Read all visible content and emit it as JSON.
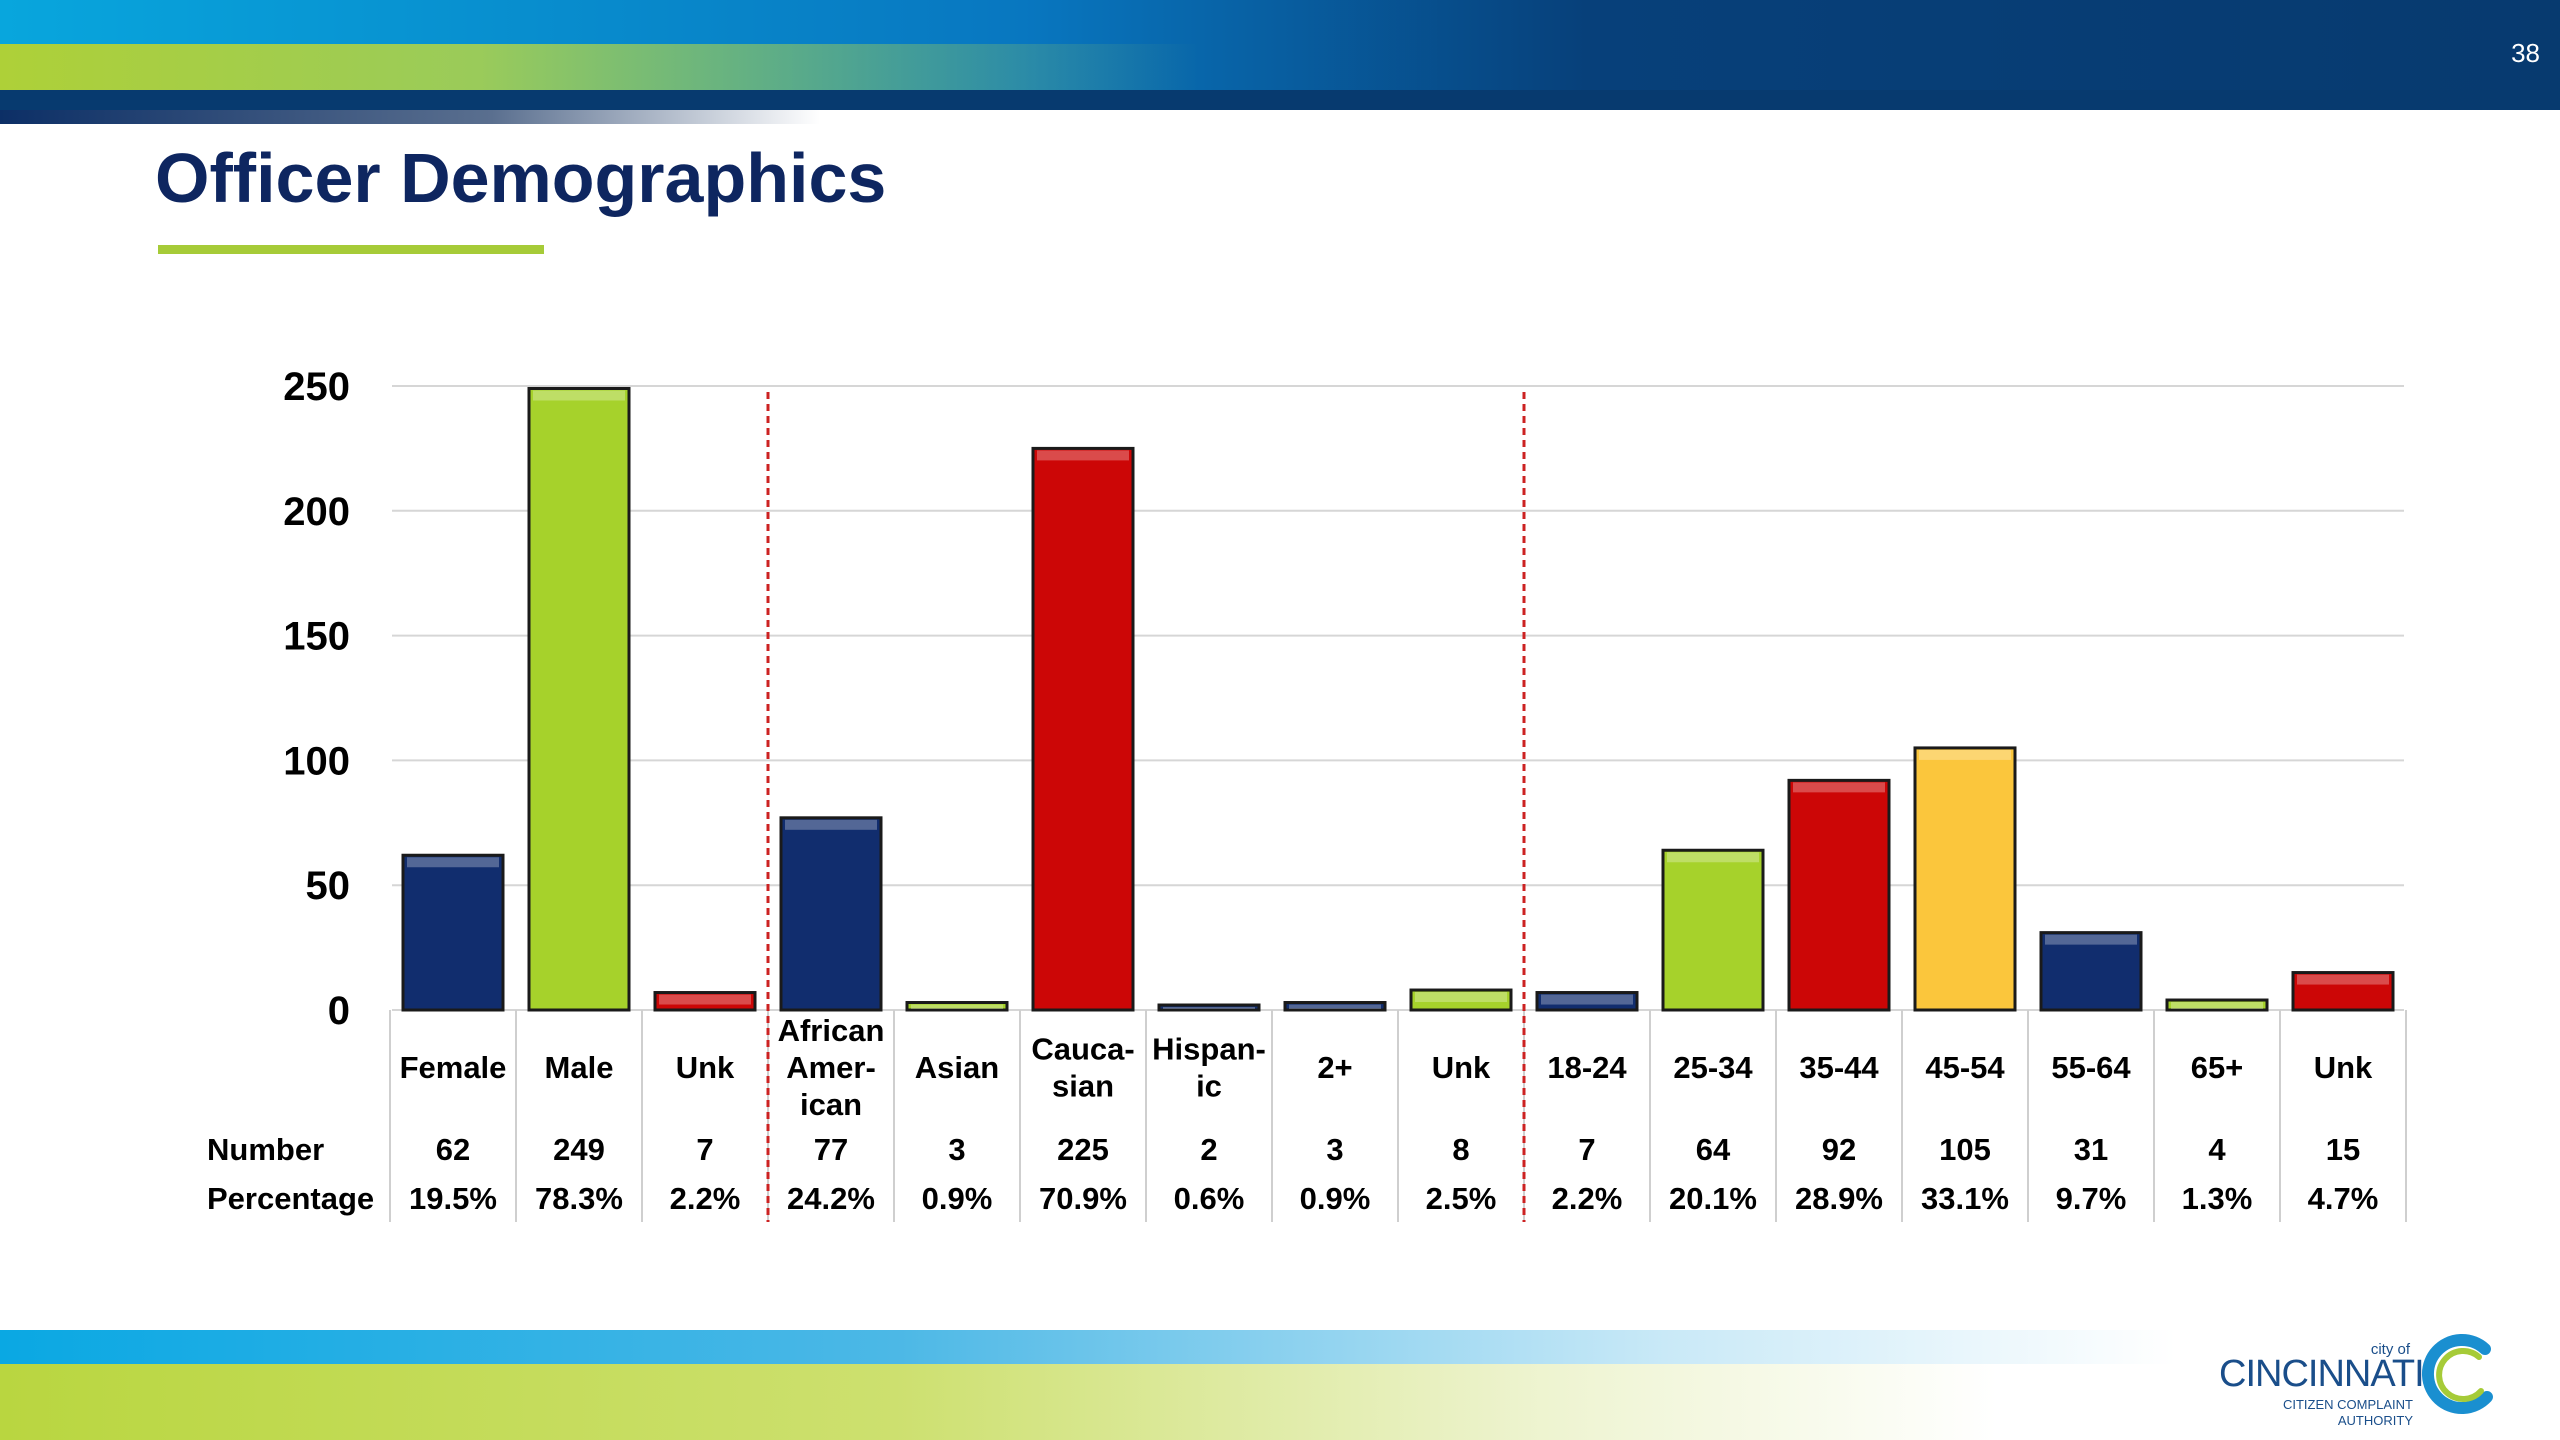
{
  "slide": {
    "page_number": "38",
    "title": "Officer Demographics"
  },
  "logo": {
    "city_of": "city of",
    "name": "CINCINNATI",
    "sub_line1": "CITIZEN COMPLAINT",
    "sub_line2": "AUTHORITY"
  },
  "colors": {
    "navy": "#112d6e",
    "green": "#a6d22b",
    "red": "#cc0606",
    "yellow": "#fbc63c",
    "divider": "#cc2222"
  },
  "chart_data": {
    "type": "bar",
    "title": "",
    "ylim": [
      0,
      250
    ],
    "yticks": [
      0,
      50,
      100,
      150,
      200,
      250
    ],
    "grid": true,
    "row_labels": {
      "number": "Number",
      "percentage": "Percentage"
    },
    "categories": [
      {
        "label": [
          "Female"
        ],
        "value": 62,
        "pct": "19.5%",
        "color": "navy"
      },
      {
        "label": [
          "Male"
        ],
        "value": 249,
        "pct": "78.3%",
        "color": "green"
      },
      {
        "label": [
          "Unk"
        ],
        "value": 7,
        "pct": "2.2%",
        "color": "red"
      },
      {
        "label": [
          "African",
          "Amer-",
          "ican"
        ],
        "value": 77,
        "pct": "24.2%",
        "color": "navy"
      },
      {
        "label": [
          "Asian"
        ],
        "value": 3,
        "pct": "0.9%",
        "color": "green"
      },
      {
        "label": [
          "Cauca-",
          "sian"
        ],
        "value": 225,
        "pct": "70.9%",
        "color": "red"
      },
      {
        "label": [
          "Hispan-",
          "ic"
        ],
        "value": 2,
        "pct": "0.6%",
        "color": "navy"
      },
      {
        "label": [
          "2+"
        ],
        "value": 3,
        "pct": "0.9%",
        "color": "navy"
      },
      {
        "label": [
          "Unk"
        ],
        "value": 8,
        "pct": "2.5%",
        "color": "green"
      },
      {
        "label": [
          "18-24"
        ],
        "value": 7,
        "pct": "2.2%",
        "color": "navy"
      },
      {
        "label": [
          "25-34"
        ],
        "value": 64,
        "pct": "20.1%",
        "color": "green"
      },
      {
        "label": [
          "35-44"
        ],
        "value": 92,
        "pct": "28.9%",
        "color": "red"
      },
      {
        "label": [
          "45-54"
        ],
        "value": 105,
        "pct": "33.1%",
        "color": "yellow"
      },
      {
        "label": [
          "55-64"
        ],
        "value": 31,
        "pct": "9.7%",
        "color": "navy"
      },
      {
        "label": [
          "65+"
        ],
        "value": 4,
        "pct": "1.3%",
        "color": "green"
      },
      {
        "label": [
          "Unk"
        ],
        "value": 15,
        "pct": "4.7%",
        "color": "red"
      }
    ],
    "group_dividers_after": [
      2,
      8
    ]
  }
}
